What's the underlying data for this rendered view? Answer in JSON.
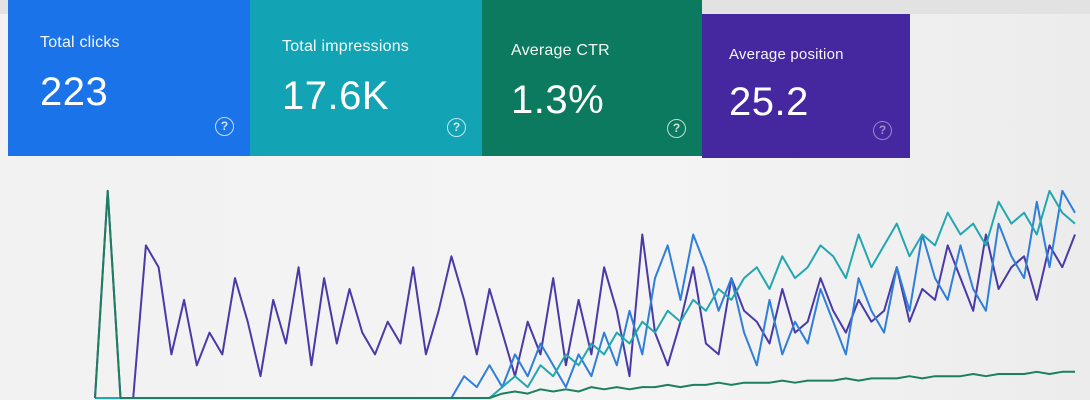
{
  "metrics": [
    {
      "label": "Total clicks",
      "value": "223",
      "color": "#1a73e8",
      "help_icon": "help-icon"
    },
    {
      "label": "Total impressions",
      "value": "17.6K",
      "color": "#12a4b4",
      "help_icon": "help-icon"
    },
    {
      "label": "Average CTR",
      "value": "1.3%",
      "color": "#0b7a5e",
      "help_icon": "help-icon"
    },
    {
      "label": "Average position",
      "value": "25.2",
      "color": "#4527a0",
      "help_icon": "help-icon"
    }
  ],
  "chart_data": {
    "type": "line",
    "grid": false,
    "series": [
      {
        "color": "#4a3aa8",
        "values": [
          0,
          95,
          0,
          0,
          70,
          60,
          20,
          45,
          15,
          30,
          20,
          55,
          35,
          10,
          45,
          25,
          60,
          15,
          55,
          25,
          50,
          30,
          20,
          35,
          25,
          60,
          20,
          40,
          65,
          45,
          20,
          50,
          30,
          10,
          35,
          20,
          55,
          15,
          45,
          20,
          60,
          40,
          10,
          75,
          30,
          15,
          35,
          60,
          25,
          20,
          55,
          40,
          35,
          25,
          50,
          30,
          35,
          55,
          40,
          30,
          45,
          35,
          40,
          60,
          35,
          50,
          45,
          70,
          55,
          40,
          75,
          50,
          60,
          65,
          45,
          70,
          60,
          75
        ]
      },
      {
        "color": "#2f7fd8",
        "values": [
          0,
          0,
          0,
          0,
          0,
          0,
          0,
          0,
          0,
          0,
          0,
          0,
          0,
          0,
          0,
          0,
          0,
          0,
          0,
          0,
          0,
          0,
          0,
          0,
          0,
          0,
          0,
          0,
          0,
          10,
          5,
          15,
          5,
          20,
          10,
          25,
          15,
          5,
          20,
          10,
          30,
          15,
          40,
          20,
          55,
          70,
          45,
          75,
          60,
          40,
          55,
          30,
          15,
          45,
          20,
          35,
          25,
          50,
          35,
          20,
          55,
          40,
          30,
          60,
          40,
          75,
          55,
          45,
          70,
          50,
          40,
          80,
          65,
          55,
          90,
          60,
          95,
          85
        ]
      },
      {
        "color": "#22a7b0",
        "values": [
          0,
          0,
          0,
          0,
          0,
          0,
          0,
          0,
          0,
          0,
          0,
          0,
          0,
          0,
          0,
          0,
          0,
          0,
          0,
          0,
          0,
          0,
          0,
          0,
          0,
          0,
          0,
          0,
          0,
          0,
          0,
          0,
          5,
          10,
          5,
          15,
          10,
          20,
          15,
          25,
          20,
          30,
          25,
          35,
          30,
          40,
          35,
          45,
          40,
          50,
          45,
          55,
          60,
          50,
          65,
          55,
          60,
          70,
          65,
          55,
          75,
          60,
          70,
          80,
          65,
          75,
          70,
          85,
          75,
          80,
          70,
          90,
          80,
          85,
          75,
          95,
          85,
          80
        ]
      },
      {
        "color": "#1c7f5e",
        "values": [
          0,
          95,
          0,
          0,
          0,
          0,
          0,
          0,
          0,
          0,
          0,
          0,
          0,
          0,
          0,
          0,
          0,
          0,
          0,
          0,
          0,
          0,
          0,
          0,
          0,
          0,
          0,
          0,
          0,
          0,
          0,
          0,
          2,
          3,
          2,
          4,
          3,
          4,
          3,
          5,
          4,
          5,
          4,
          5,
          5,
          6,
          5,
          6,
          6,
          7,
          6,
          7,
          7,
          7,
          8,
          7,
          8,
          8,
          8,
          9,
          8,
          9,
          9,
          9,
          10,
          9,
          10,
          10,
          10,
          11,
          10,
          11,
          11,
          11,
          12,
          11,
          12,
          12
        ]
      }
    ]
  }
}
